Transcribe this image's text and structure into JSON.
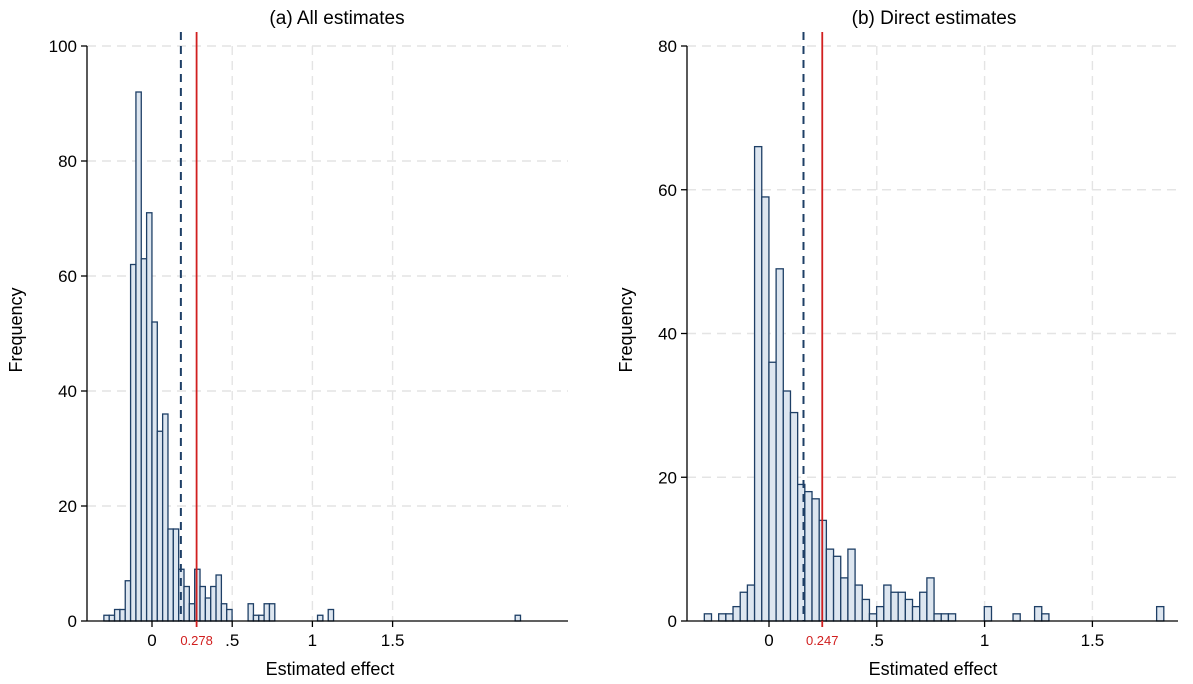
{
  "chart_data": [
    {
      "type": "bar",
      "title": "(a) All estimates",
      "xlabel": "Estimated effect",
      "ylabel": "Frequency",
      "xticks": [
        {
          "v": 0,
          "label": "0"
        },
        {
          "v": 0.5,
          "label": ".5"
        },
        {
          "v": 1,
          "label": "1"
        },
        {
          "v": 1.5,
          "label": "1.5"
        }
      ],
      "yticks": [
        {
          "v": 0,
          "label": "0"
        },
        {
          "v": 20,
          "label": "20"
        },
        {
          "v": 40,
          "label": "40"
        },
        {
          "v": 60,
          "label": "60"
        },
        {
          "v": 80,
          "label": "80"
        },
        {
          "v": 100,
          "label": "100"
        }
      ],
      "xlim": [
        -0.3,
        2.6
      ],
      "ylim": [
        0,
        100
      ],
      "grid": true,
      "bin_width": 0.0333,
      "bin_start": -0.3,
      "values": [
        1,
        1,
        2,
        2,
        7,
        62,
        92,
        63,
        71,
        52,
        33,
        36,
        16,
        16,
        9,
        6,
        3,
        9,
        6,
        4,
        6,
        8,
        3,
        2,
        0,
        0,
        0,
        3,
        1,
        1,
        3,
        3,
        0,
        0,
        0,
        0,
        0,
        0,
        0,
        0,
        1,
        0,
        2,
        0,
        0,
        0,
        0,
        0,
        0,
        0,
        0,
        0,
        0,
        0,
        0,
        0,
        0,
        0,
        0,
        0,
        0,
        0,
        0,
        0,
        0,
        0,
        0,
        0,
        0,
        0,
        0,
        0,
        0,
        0,
        0,
        0,
        0,
        1
      ],
      "median_line": 0.18,
      "mean_line": 0.278,
      "mean_label": "0.278"
    },
    {
      "type": "bar",
      "title": "(b) Direct estimates",
      "xlabel": "Estimated effect",
      "ylabel": "Frequency",
      "xticks": [
        {
          "v": 0,
          "label": "0"
        },
        {
          "v": 0.5,
          "label": ".5"
        },
        {
          "v": 1,
          "label": "1"
        },
        {
          "v": 1.5,
          "label": "1.5"
        }
      ],
      "yticks": [
        {
          "v": 0,
          "label": "0"
        },
        {
          "v": 20,
          "label": "20"
        },
        {
          "v": 40,
          "label": "40"
        },
        {
          "v": 60,
          "label": "60"
        },
        {
          "v": 80,
          "label": "80"
        }
      ],
      "xlim": [
        -0.42,
        1.9
      ],
      "ylim": [
        0,
        80
      ],
      "grid": true,
      "bin_width": 0.0333,
      "bin_start": -0.3,
      "values": [
        1,
        0,
        1,
        1,
        2,
        4,
        5,
        66,
        59,
        36,
        49,
        32,
        29,
        19,
        18,
        17,
        14,
        10,
        9,
        6,
        10,
        5,
        3,
        1,
        2,
        5,
        4,
        4,
        3,
        2,
        4,
        6,
        1,
        1,
        1,
        0,
        0,
        0,
        0,
        2,
        0,
        0,
        0,
        1,
        0,
        0,
        2,
        1,
        0,
        0,
        0,
        0,
        0,
        0,
        0,
        0,
        0,
        0,
        0,
        0,
        0,
        0,
        0,
        2
      ],
      "median_line": 0.16,
      "mean_line": 0.247,
      "mean_label": "0.247"
    }
  ]
}
